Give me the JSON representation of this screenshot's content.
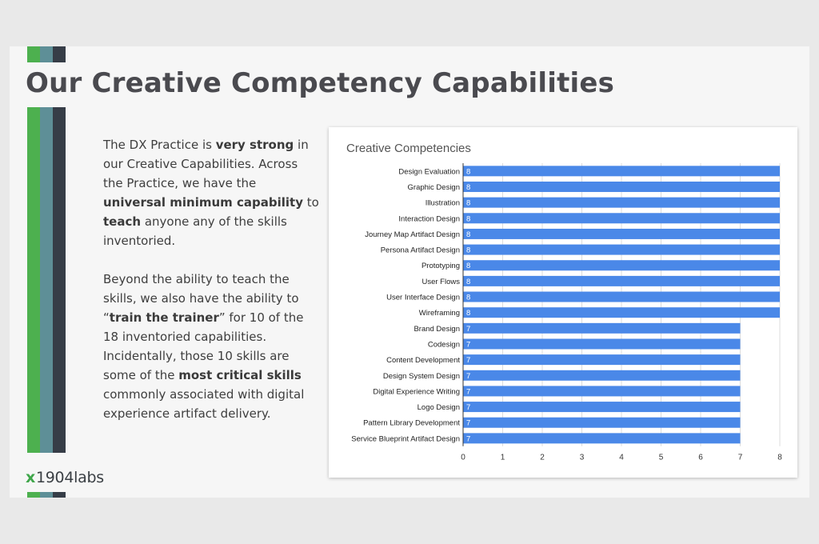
{
  "slide": {
    "title": "Our Creative Competency Capabilities",
    "stripe_colors": [
      "#4db04f",
      "#5e8f97",
      "#363d47"
    ]
  },
  "body": {
    "p1": [
      {
        "text": "The DX Practice is ",
        "bold": false
      },
      {
        "text": "very strong",
        "bold": true
      },
      {
        "text": " in our Creative Capabilities. Across the Practice, we have the ",
        "bold": false
      },
      {
        "text": "universal minimum capability",
        "bold": true
      },
      {
        "text": " to ",
        "bold": false
      },
      {
        "text": "teach",
        "bold": true
      },
      {
        "text": " anyone any of the skills inventoried.",
        "bold": false
      }
    ],
    "p2": [
      {
        "text": "Beyond the ability to teach the skills, we also have the ability to “",
        "bold": false
      },
      {
        "text": "train the trainer",
        "bold": true
      },
      {
        "text": "” for 10 of the 18 inventoried capabilities. Incidentally, those 10 skills are some of the ",
        "bold": false
      },
      {
        "text": "most critical skills",
        "bold": true
      },
      {
        "text": " commonly associated with digital experience artifact delivery.",
        "bold": false
      }
    ]
  },
  "logo": {
    "mark": "x",
    "text": "1904labs"
  },
  "chart_data": {
    "type": "bar",
    "orientation": "horizontal",
    "title": "Creative Competencies",
    "xlabel": "",
    "ylabel": "",
    "xlim": [
      0,
      8
    ],
    "x_ticks": [
      0,
      1,
      2,
      3,
      4,
      5,
      6,
      7,
      8
    ],
    "grid": true,
    "bar_color": "#4a88e8",
    "categories": [
      "Design Evaluation",
      "Graphic Design",
      "Illustration",
      "Interaction Design",
      "Journey Map Artifact Design",
      "Persona Artifact Design",
      "Prototyping",
      "User Flows",
      "User Interface Design",
      "Wireframing",
      "Brand Design",
      "Codesign",
      "Content Development",
      "Design System Design",
      "Digital Experience Writing",
      "Logo Design",
      "Pattern Library Development",
      "Service Blueprint Artifact Design"
    ],
    "values": [
      8,
      8,
      8,
      8,
      8,
      8,
      8,
      8,
      8,
      8,
      7,
      7,
      7,
      7,
      7,
      7,
      7,
      7
    ]
  }
}
